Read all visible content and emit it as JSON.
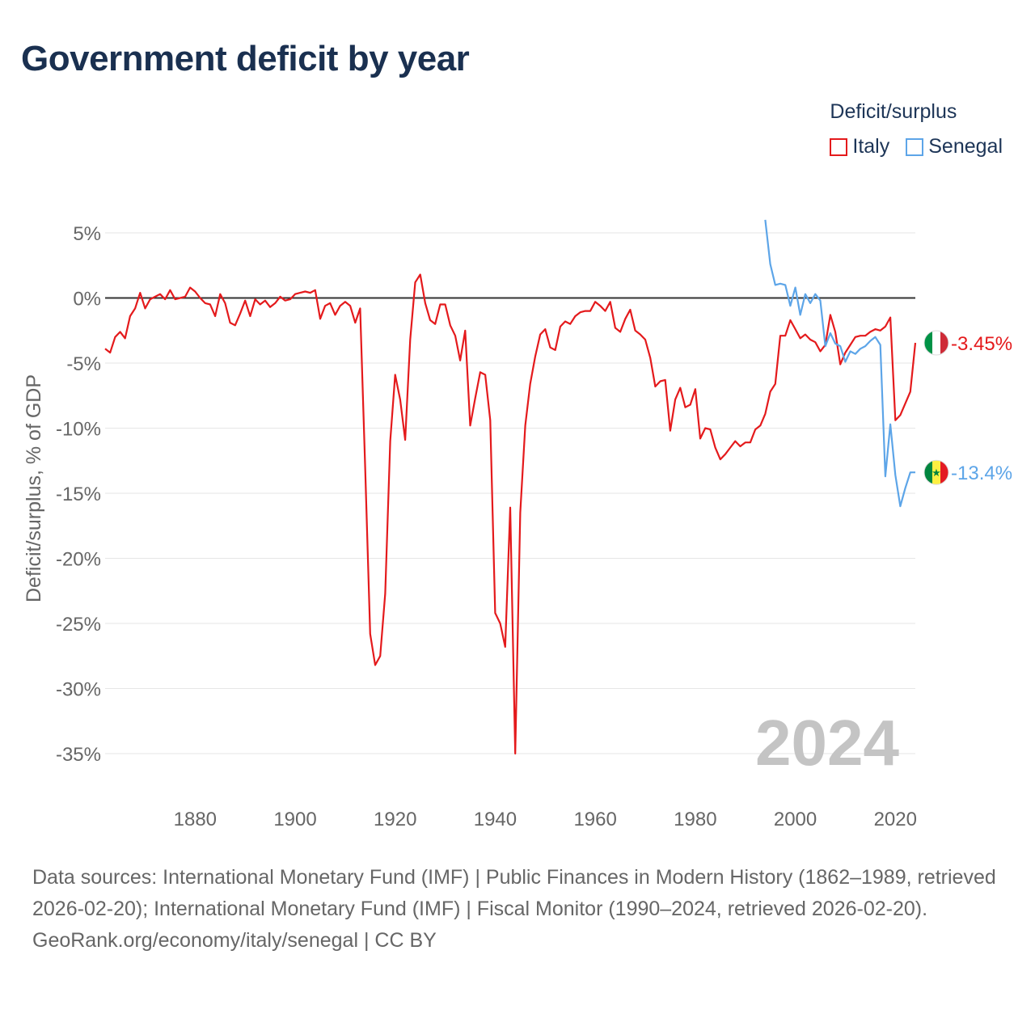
{
  "header": {
    "title": "Government deficit by year"
  },
  "legend": {
    "title": "Deficit/surplus",
    "items": [
      {
        "label": "Italy",
        "color": "#e41a1c"
      },
      {
        "label": "Senegal",
        "color": "#5da5e8"
      }
    ]
  },
  "footer": {
    "sources": "Data sources: International Monetary Fund (IMF) | Public Finances in Modern History (1862–1989, retrieved 2026-02-20); International Monetary Fund (IMF) | Fiscal Monitor (1990–2024, retrieved 2026-02-20).",
    "credit": "GeoRank.org/economy/italy/senegal | CC BY"
  },
  "chart_data": {
    "type": "line",
    "title": "Government deficit by year",
    "xlabel": "",
    "ylabel": "Deficit/surplus, % of GDP",
    "xlim": [
      1862,
      2024
    ],
    "ylim": [
      -35,
      5
    ],
    "x_ticks": [
      1880,
      1900,
      1920,
      1940,
      1960,
      1980,
      2000,
      2020
    ],
    "x_tick_labels": [
      "1880",
      "1900",
      "1920",
      "1940",
      "1960",
      "1980",
      "2000",
      "2020"
    ],
    "y_ticks": [
      5,
      0,
      -5,
      -10,
      -15,
      -20,
      -25,
      -30,
      -35
    ],
    "y_tick_labels": [
      "5%",
      "0%",
      "-5%",
      "-10%",
      "-15%",
      "-20%",
      "-25%",
      "-30%",
      "-35%"
    ],
    "year_watermark": "2024",
    "series": [
      {
        "name": "Italy",
        "color": "#e41a1c",
        "end_label": "-3.45%",
        "x": [
          1862,
          1863,
          1864,
          1865,
          1866,
          1867,
          1868,
          1869,
          1870,
          1871,
          1872,
          1873,
          1874,
          1875,
          1876,
          1877,
          1878,
          1879,
          1880,
          1881,
          1882,
          1883,
          1884,
          1885,
          1886,
          1887,
          1888,
          1889,
          1890,
          1891,
          1892,
          1893,
          1894,
          1895,
          1896,
          1897,
          1898,
          1899,
          1900,
          1901,
          1902,
          1903,
          1904,
          1905,
          1906,
          1907,
          1908,
          1909,
          1910,
          1911,
          1912,
          1913,
          1914,
          1915,
          1916,
          1917,
          1918,
          1919,
          1920,
          1921,
          1922,
          1923,
          1924,
          1925,
          1926,
          1927,
          1928,
          1929,
          1930,
          1931,
          1932,
          1933,
          1934,
          1935,
          1936,
          1937,
          1938,
          1939,
          1940,
          1941,
          1942,
          1943,
          1944,
          1945,
          1946,
          1947,
          1948,
          1949,
          1950,
          1951,
          1952,
          1953,
          1954,
          1955,
          1956,
          1957,
          1958,
          1959,
          1960,
          1961,
          1962,
          1963,
          1964,
          1965,
          1966,
          1967,
          1968,
          1969,
          1970,
          1971,
          1972,
          1973,
          1974,
          1975,
          1976,
          1977,
          1978,
          1979,
          1980,
          1981,
          1982,
          1983,
          1984,
          1985,
          1986,
          1987,
          1988,
          1989,
          1990,
          1991,
          1992,
          1993,
          1994,
          1995,
          1996,
          1997,
          1998,
          1999,
          2000,
          2001,
          2002,
          2003,
          2004,
          2005,
          2006,
          2007,
          2008,
          2009,
          2010,
          2011,
          2012,
          2013,
          2014,
          2015,
          2016,
          2017,
          2018,
          2019,
          2020,
          2021,
          2022,
          2023,
          2024
        ],
        "values": [
          -3.9,
          -4.2,
          -3,
          -2.6,
          -3.1,
          -1.4,
          -0.8,
          0.4,
          -0.8,
          -0.1,
          0.1,
          0.3,
          -0.1,
          0.6,
          -0.1,
          0,
          0.1,
          0.8,
          0.5,
          0,
          -0.4,
          -0.5,
          -1.4,
          0.3,
          -0.4,
          -1.9,
          -2.1,
          -1.2,
          -0.2,
          -1.4,
          -0.1,
          -0.5,
          -0.2,
          -0.7,
          -0.4,
          0.1,
          -0.2,
          -0.1,
          0.3,
          0.4,
          0.5,
          0.4,
          0.6,
          -1.6,
          -0.6,
          -0.4,
          -1.3,
          -0.6,
          -0.3,
          -0.6,
          -1.9,
          -0.8,
          -13,
          -25.8,
          -28.2,
          -27.5,
          -22.7,
          -11,
          -5.9,
          -7.8,
          -10.9,
          -3.2,
          1.2,
          1.8,
          -0.4,
          -1.7,
          -2,
          -0.5,
          -0.5,
          -2.1,
          -2.9,
          -4.8,
          -2.5,
          -9.8,
          -7.7,
          -5.7,
          -5.9,
          -9.4,
          -24.2,
          -25,
          -26.8,
          -16.1,
          -35,
          -16.5,
          -9.8,
          -6.6,
          -4.5,
          -2.8,
          -2.4,
          -3.8,
          -4,
          -2.2,
          -1.8,
          -2,
          -1.4,
          -1.1,
          -1,
          -1,
          -0.3,
          -0.6,
          -1,
          -0.3,
          -2.3,
          -2.6,
          -1.6,
          -0.9,
          -2.5,
          -2.8,
          -3.2,
          -4.6,
          -6.8,
          -6.4,
          -6.3,
          -10.2,
          -7.8,
          -6.9,
          -8.4,
          -8.2,
          -7,
          -10.8,
          -10,
          -10.1,
          -11.5,
          -12.4,
          -12,
          -11.5,
          -11,
          -11.4,
          -11.1,
          -11.1,
          -10.1,
          -9.8,
          -8.9,
          -7.2,
          -6.6,
          -2.9,
          -2.9,
          -1.7,
          -2.4,
          -3.1,
          -2.8,
          -3.2,
          -3.4,
          -4.1,
          -3.6,
          -1.3,
          -2.6,
          -5.1,
          -4.2,
          -3.6,
          -3,
          -2.9,
          -2.9,
          -2.6,
          -2.4,
          -2.5,
          -2.2,
          -1.5,
          -9.4,
          -9,
          -8.1,
          -7.2,
          -3.45
        ]
      },
      {
        "name": "Senegal",
        "color": "#5da5e8",
        "end_label": "-13.4%",
        "x": [
          1994,
          1995,
          1996,
          1997,
          1998,
          1999,
          2000,
          2001,
          2002,
          2003,
          2004,
          2005,
          2006,
          2007,
          2008,
          2009,
          2010,
          2011,
          2012,
          2013,
          2014,
          2015,
          2016,
          2017,
          2018,
          2019,
          2020,
          2021,
          2022,
          2023,
          2024
        ],
        "values": [
          6,
          2.6,
          1,
          1.1,
          1,
          -0.6,
          0.8,
          -1.3,
          0.3,
          -0.4,
          0.3,
          -0.2,
          -3.7,
          -2.7,
          -3.5,
          -3.7,
          -4.9,
          -4.1,
          -4.3,
          -3.9,
          -3.7,
          -3.3,
          -3,
          -3.6,
          -13.7,
          -9.7,
          -13.6,
          -16,
          -14.6,
          -13.4,
          -13.4
        ]
      }
    ]
  }
}
